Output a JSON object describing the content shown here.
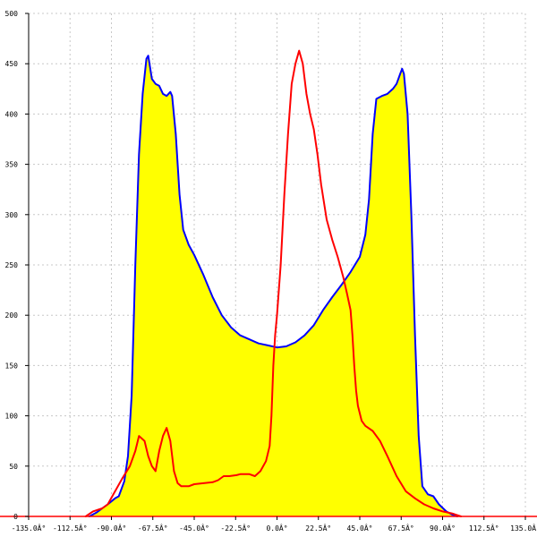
{
  "chart_data": {
    "type": "area",
    "title": "",
    "xlabel": "",
    "ylabel": "",
    "xlim": [
      -135,
      135
    ],
    "ylim": [
      0,
      500
    ],
    "grid": true,
    "x_ticks": [
      -135,
      -112.5,
      -90,
      -67.5,
      -45,
      -22.5,
      0,
      22.5,
      45,
      67.5,
      90,
      112.5,
      135
    ],
    "x_tick_labels": [
      "-135.0Â°",
      "-112.5Â°",
      "-90.0Â°",
      "-67.5Â°",
      "-45.0Â°",
      "-22.5Â°",
      "0.0Â°",
      "22.5Â°",
      "45.0Â°",
      "67.5Â°",
      "90.0Â°",
      "112.5Â°",
      "135.0Â°"
    ],
    "y_ticks": [
      0,
      50,
      100,
      150,
      200,
      250,
      300,
      350,
      400,
      450,
      500
    ],
    "y_tick_labels": [
      "0",
      "50",
      "100",
      "150",
      "200",
      "250",
      "300",
      "350",
      "400",
      "450",
      "500"
    ],
    "series": [
      {
        "color": "#0000ff",
        "fill": "#ffff00",
        "points": [
          [
            -102,
            0
          ],
          [
            -98,
            4
          ],
          [
            -95,
            8
          ],
          [
            -92,
            12
          ],
          [
            -88,
            18
          ],
          [
            -86,
            20
          ],
          [
            -83,
            35
          ],
          [
            -81,
            60
          ],
          [
            -79,
            120
          ],
          [
            -77,
            250
          ],
          [
            -75,
            360
          ],
          [
            -73,
            420
          ],
          [
            -71,
            455
          ],
          [
            -70,
            458
          ],
          [
            -68,
            435
          ],
          [
            -66,
            430
          ],
          [
            -64,
            428
          ],
          [
            -62,
            420
          ],
          [
            -60,
            418
          ],
          [
            -58,
            422
          ],
          [
            -57,
            418
          ],
          [
            -55,
            380
          ],
          [
            -53,
            320
          ],
          [
            -51,
            285
          ],
          [
            -48,
            270
          ],
          [
            -45,
            260
          ],
          [
            -40,
            240
          ],
          [
            -35,
            218
          ],
          [
            -30,
            200
          ],
          [
            -25,
            188
          ],
          [
            -20,
            180
          ],
          [
            -15,
            176
          ],
          [
            -10,
            172
          ],
          [
            -5,
            170
          ],
          [
            0,
            168
          ],
          [
            5,
            169
          ],
          [
            10,
            173
          ],
          [
            15,
            180
          ],
          [
            20,
            190
          ],
          [
            25,
            205
          ],
          [
            30,
            218
          ],
          [
            35,
            230
          ],
          [
            40,
            243
          ],
          [
            45,
            258
          ],
          [
            48,
            280
          ],
          [
            50,
            315
          ],
          [
            52,
            380
          ],
          [
            54,
            415
          ],
          [
            57,
            418
          ],
          [
            60,
            420
          ],
          [
            63,
            425
          ],
          [
            65,
            430
          ],
          [
            67,
            440
          ],
          [
            68,
            445
          ],
          [
            69,
            440
          ],
          [
            71,
            400
          ],
          [
            73,
            300
          ],
          [
            75,
            180
          ],
          [
            77,
            80
          ],
          [
            79,
            30
          ],
          [
            82,
            22
          ],
          [
            85,
            20
          ],
          [
            88,
            12
          ],
          [
            92,
            5
          ],
          [
            95,
            2
          ],
          [
            98,
            0
          ]
        ]
      },
      {
        "color": "#ff0000",
        "fill": "none",
        "points": [
          [
            -104,
            0
          ],
          [
            -100,
            5
          ],
          [
            -95,
            8
          ],
          [
            -92,
            12
          ],
          [
            -88,
            25
          ],
          [
            -84,
            38
          ],
          [
            -80,
            50
          ],
          [
            -77,
            65
          ],
          [
            -75,
            80
          ],
          [
            -72,
            75
          ],
          [
            -70,
            60
          ],
          [
            -68,
            50
          ],
          [
            -66,
            45
          ],
          [
            -64,
            65
          ],
          [
            -62,
            80
          ],
          [
            -60,
            88
          ],
          [
            -58,
            75
          ],
          [
            -56,
            45
          ],
          [
            -54,
            33
          ],
          [
            -52,
            30
          ],
          [
            -48,
            30
          ],
          [
            -45,
            32
          ],
          [
            -40,
            33
          ],
          [
            -35,
            34
          ],
          [
            -32,
            36
          ],
          [
            -29,
            40
          ],
          [
            -26,
            40
          ],
          [
            -22,
            41
          ],
          [
            -20,
            42
          ],
          [
            -15,
            42
          ],
          [
            -12,
            40
          ],
          [
            -9,
            45
          ],
          [
            -6,
            55
          ],
          [
            -4,
            70
          ],
          [
            -3,
            100
          ],
          [
            -2,
            150
          ],
          [
            -1,
            180
          ],
          [
            0,
            200
          ],
          [
            2,
            250
          ],
          [
            4,
            320
          ],
          [
            6,
            380
          ],
          [
            8,
            430
          ],
          [
            10,
            450
          ],
          [
            12,
            463
          ],
          [
            14,
            450
          ],
          [
            16,
            420
          ],
          [
            18,
            400
          ],
          [
            20,
            385
          ],
          [
            22,
            360
          ],
          [
            24,
            330
          ],
          [
            27,
            295
          ],
          [
            30,
            275
          ],
          [
            33,
            258
          ],
          [
            36,
            238
          ],
          [
            38,
            222
          ],
          [
            40,
            205
          ],
          [
            41,
            180
          ],
          [
            42,
            150
          ],
          [
            43,
            125
          ],
          [
            44,
            110
          ],
          [
            46,
            95
          ],
          [
            48,
            90
          ],
          [
            52,
            85
          ],
          [
            56,
            75
          ],
          [
            60,
            60
          ],
          [
            65,
            40
          ],
          [
            70,
            25
          ],
          [
            75,
            18
          ],
          [
            80,
            12
          ],
          [
            85,
            8
          ],
          [
            90,
            5
          ],
          [
            95,
            3
          ],
          [
            100,
            0
          ]
        ]
      }
    ]
  }
}
